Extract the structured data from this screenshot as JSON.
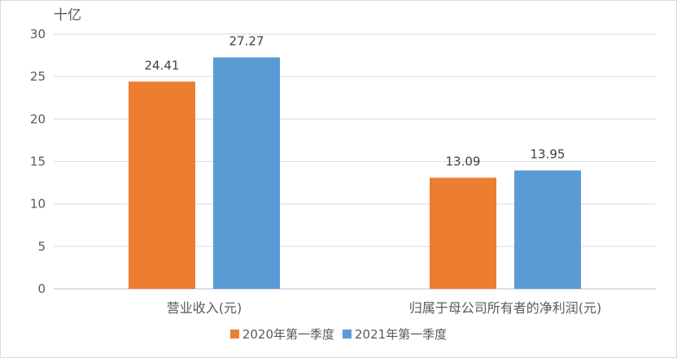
{
  "chart_data": {
    "type": "bar",
    "unit_label": "十亿",
    "categories": [
      "营业收入(元)",
      "归属于母公司所有者的净利润(元)"
    ],
    "series": [
      {
        "name": "2020年第一季度",
        "values": [
          24.41,
          13.09
        ],
        "labels": [
          "24.41",
          "13.09"
        ],
        "color": "#ED7D31"
      },
      {
        "name": "2021年第一季度",
        "values": [
          27.27,
          13.95
        ],
        "labels": [
          "27.27",
          "13.95"
        ],
        "color": "#5B9BD5"
      }
    ],
    "ylim": [
      0,
      30
    ],
    "yticks": [
      0,
      5,
      10,
      15,
      20,
      25,
      30
    ],
    "grid": true,
    "legend_position": "bottom"
  }
}
